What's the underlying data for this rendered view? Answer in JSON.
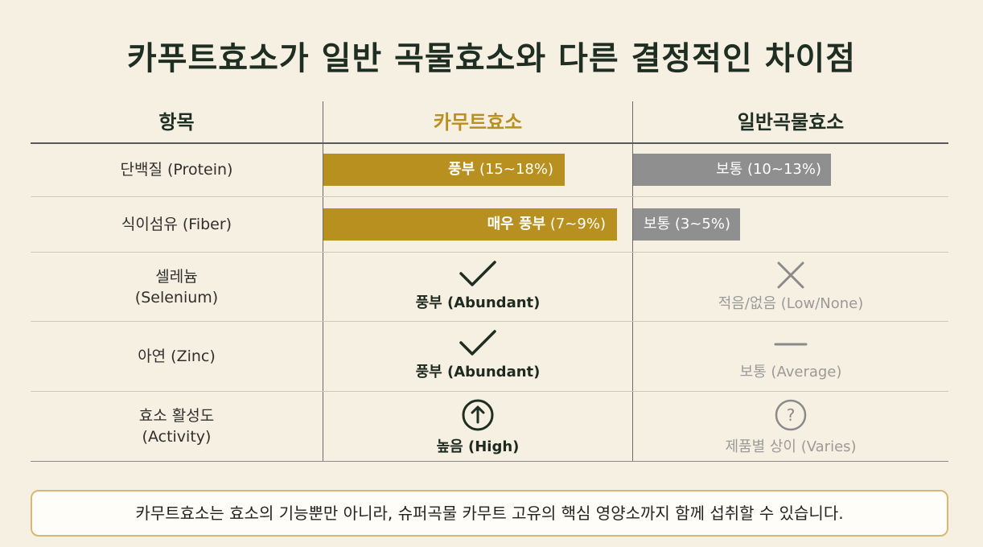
{
  "title": "카푸트효소가 일반 곡물효소와 다른 결정적인 차이점",
  "headers": {
    "item": "항목",
    "kamut": "카무트효소",
    "general": "일반곡물효소"
  },
  "colors": {
    "background": "#f6f0e2",
    "kamut_accent": "#b8901f",
    "general_bar": "#8f8f8f",
    "check_dark": "#1f2e22",
    "light_text": "#9a9a9a"
  },
  "rows": [
    {
      "label": "단백질 (Protein)"
    },
    {
      "label": "식이섬유 (Fiber)"
    },
    {
      "label_line1": "셀레늄",
      "label_line2": "(Selenium)"
    },
    {
      "label": "아연 (Zinc)"
    },
    {
      "label_line1": "효소 활성도",
      "label_line2": "(Activity)"
    }
  ],
  "kamut": {
    "protein_strong": "풍부",
    "protein_rest": " (15~18%)",
    "fiber_strong": "매우 풍부",
    "fiber_rest": " (7~9%)",
    "selenium": "풍부 (Abundant)",
    "selenium_icon": "check-icon",
    "zinc": "풍부 (Abundant)",
    "zinc_icon": "check-icon",
    "activity": "높음 (High)",
    "activity_icon": "arrow-up-circle-icon"
  },
  "general": {
    "protein_strong": "보통",
    "protein_rest": " (10~13%)",
    "fiber_strong": "보통",
    "fiber_rest": " (3~5%)",
    "selenium": "적음/없음 (Low/None)",
    "selenium_icon": "x-icon",
    "zinc": "보통 (Average)",
    "zinc_icon": "dash-icon",
    "activity": "제품별 상이 (Varies)",
    "activity_icon": "question-circle-icon"
  },
  "chart_data": {
    "type": "bar",
    "categories": [
      "단백질 (Protein)",
      "식이섬유 (Fiber)"
    ],
    "series": [
      {
        "name": "카무트효소",
        "values": [
          16.5,
          8
        ]
      },
      {
        "name": "일반곡물효소",
        "values": [
          11.5,
          4
        ]
      }
    ]
  },
  "footer": "카무트효소는 효소의 기능뿐만 아니라, 슈퍼곡물 카무트 고유의 핵심 영양소까지 함께 섭취할 수 있습니다."
}
